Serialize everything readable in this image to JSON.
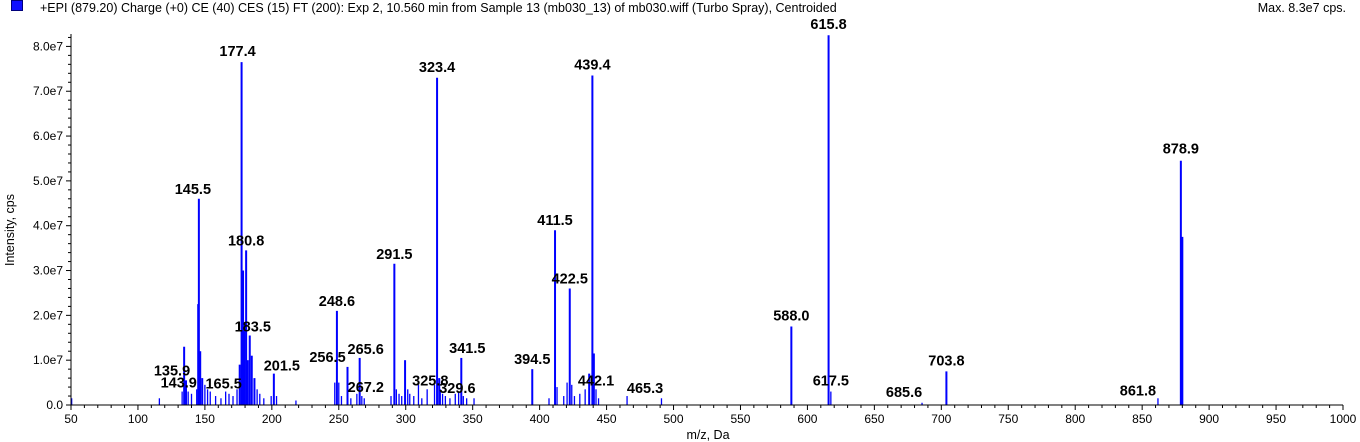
{
  "header": {
    "title": "+EPI (879.20) Charge (+0) CE (40) CES (15) FT (200): Exp 2, 10.560 min from Sample 13 (mb030_13) of mb030.wiff (Turbo Spray), Centroided",
    "max_label": "Max. 8.3e7 cps."
  },
  "colors": {
    "series": "#0000ff",
    "axis": "#000000",
    "background": "#ffffff"
  },
  "chart_data": {
    "type": "bar",
    "title": "",
    "xlabel": "m/z, Da",
    "ylabel": "Intensity, cps",
    "xlim": [
      50,
      1000
    ],
    "ylim": [
      0,
      85000000
    ],
    "grid": false,
    "x_ticks": [
      50,
      100,
      150,
      200,
      250,
      300,
      350,
      400,
      450,
      500,
      550,
      600,
      650,
      700,
      750,
      800,
      850,
      900,
      950,
      1000
    ],
    "y_ticks": [
      {
        "value": 0,
        "label": "0.0"
      },
      {
        "value": 10000000,
        "label": "1.0e7"
      },
      {
        "value": 20000000,
        "label": "2.0e7"
      },
      {
        "value": 30000000,
        "label": "3.0e7"
      },
      {
        "value": 40000000,
        "label": "4.0e7"
      },
      {
        "value": 50000000,
        "label": "5.0e7"
      },
      {
        "value": 60000000,
        "label": "6.0e7"
      },
      {
        "value": 70000000,
        "label": "7.0e7"
      },
      {
        "value": 80000000,
        "label": "8.0e7"
      }
    ],
    "peaks": [
      {
        "mz": 50.5,
        "intensity": 1500000
      },
      {
        "mz": 116.0,
        "intensity": 1500000
      },
      {
        "mz": 133.0,
        "intensity": 3000000
      },
      {
        "mz": 134.5,
        "intensity": 13000000
      },
      {
        "mz": 135.9,
        "intensity": 5500000,
        "label": "135.9"
      },
      {
        "mz": 137.5,
        "intensity": 3000000
      },
      {
        "mz": 140.0,
        "intensity": 2500000
      },
      {
        "mz": 143.9,
        "intensity": 3500000,
        "label": "143.9"
      },
      {
        "mz": 145.0,
        "intensity": 22500000
      },
      {
        "mz": 145.5,
        "intensity": 46000000,
        "label": "145.5"
      },
      {
        "mz": 146.5,
        "intensity": 12000000
      },
      {
        "mz": 148.0,
        "intensity": 6000000
      },
      {
        "mz": 150.0,
        "intensity": 4500000
      },
      {
        "mz": 152.0,
        "intensity": 3500000
      },
      {
        "mz": 154.0,
        "intensity": 3000000
      },
      {
        "mz": 158.0,
        "intensity": 2000000
      },
      {
        "mz": 162.0,
        "intensity": 1500000
      },
      {
        "mz": 165.5,
        "intensity": 3000000,
        "label": "165.5"
      },
      {
        "mz": 168.0,
        "intensity": 2500000
      },
      {
        "mz": 171.0,
        "intensity": 2000000
      },
      {
        "mz": 174.0,
        "intensity": 3500000
      },
      {
        "mz": 176.0,
        "intensity": 9000000
      },
      {
        "mz": 177.4,
        "intensity": 76500000,
        "label": "177.4"
      },
      {
        "mz": 178.5,
        "intensity": 30000000
      },
      {
        "mz": 179.5,
        "intensity": 18000000
      },
      {
        "mz": 180.8,
        "intensity": 34500000,
        "label": "180.8"
      },
      {
        "mz": 182.0,
        "intensity": 10000000
      },
      {
        "mz": 183.5,
        "intensity": 15500000,
        "label": "183.5"
      },
      {
        "mz": 185.0,
        "intensity": 11000000
      },
      {
        "mz": 187.0,
        "intensity": 6000000
      },
      {
        "mz": 189.0,
        "intensity": 3500000
      },
      {
        "mz": 191.0,
        "intensity": 2500000
      },
      {
        "mz": 194.0,
        "intensity": 1500000
      },
      {
        "mz": 199.5,
        "intensity": 2000000
      },
      {
        "mz": 201.5,
        "intensity": 7000000,
        "label": "201.5"
      },
      {
        "mz": 203.5,
        "intensity": 2000000
      },
      {
        "mz": 218.0,
        "intensity": 1000000
      },
      {
        "mz": 247.0,
        "intensity": 5000000
      },
      {
        "mz": 248.6,
        "intensity": 21000000,
        "label": "248.6"
      },
      {
        "mz": 250.0,
        "intensity": 5000000
      },
      {
        "mz": 252.0,
        "intensity": 2000000
      },
      {
        "mz": 256.5,
        "intensity": 8500000,
        "label": "256.5"
      },
      {
        "mz": 259.0,
        "intensity": 1500000
      },
      {
        "mz": 263.5,
        "intensity": 2500000
      },
      {
        "mz": 265.6,
        "intensity": 10500000,
        "label": "265.6"
      },
      {
        "mz": 267.2,
        "intensity": 2000000,
        "label": "267.2"
      },
      {
        "mz": 269.0,
        "intensity": 1500000
      },
      {
        "mz": 289.0,
        "intensity": 2000000
      },
      {
        "mz": 291.5,
        "intensity": 31500000,
        "label": "291.5"
      },
      {
        "mz": 293.0,
        "intensity": 3500000
      },
      {
        "mz": 295.0,
        "intensity": 2500000
      },
      {
        "mz": 297.0,
        "intensity": 2000000
      },
      {
        "mz": 299.5,
        "intensity": 10000000
      },
      {
        "mz": 301.5,
        "intensity": 3500000
      },
      {
        "mz": 303.0,
        "intensity": 2500000
      },
      {
        "mz": 306.0,
        "intensity": 2000000
      },
      {
        "mz": 309.5,
        "intensity": 4500000
      },
      {
        "mz": 312.0,
        "intensity": 1500000
      },
      {
        "mz": 316.0,
        "intensity": 3500000
      },
      {
        "mz": 321.5,
        "intensity": 4500000
      },
      {
        "mz": 323.4,
        "intensity": 73000000,
        "label": "323.4"
      },
      {
        "mz": 325.0,
        "intensity": 6000000
      },
      {
        "mz": 325.8,
        "intensity": 3500000,
        "label": "325.8"
      },
      {
        "mz": 327.5,
        "intensity": 2500000
      },
      {
        "mz": 329.6,
        "intensity": 2000000,
        "label": "329.6"
      },
      {
        "mz": 333.0,
        "intensity": 1500000
      },
      {
        "mz": 337.0,
        "intensity": 2500000
      },
      {
        "mz": 339.5,
        "intensity": 3000000
      },
      {
        "mz": 341.5,
        "intensity": 10500000,
        "label": "341.5"
      },
      {
        "mz": 343.0,
        "intensity": 2000000
      },
      {
        "mz": 345.5,
        "intensity": 1500000
      },
      {
        "mz": 351.0,
        "intensity": 1500000
      },
      {
        "mz": 394.5,
        "intensity": 8000000,
        "label": "394.5"
      },
      {
        "mz": 407.0,
        "intensity": 1500000
      },
      {
        "mz": 411.5,
        "intensity": 39000000,
        "label": "411.5"
      },
      {
        "mz": 413.0,
        "intensity": 4000000
      },
      {
        "mz": 418.0,
        "intensity": 2000000
      },
      {
        "mz": 420.5,
        "intensity": 5000000
      },
      {
        "mz": 422.5,
        "intensity": 26000000,
        "label": "422.5"
      },
      {
        "mz": 424.0,
        "intensity": 4500000
      },
      {
        "mz": 426.0,
        "intensity": 2000000
      },
      {
        "mz": 430.0,
        "intensity": 2500000
      },
      {
        "mz": 434.0,
        "intensity": 3500000
      },
      {
        "mz": 437.0,
        "intensity": 7000000
      },
      {
        "mz": 439.4,
        "intensity": 73500000,
        "label": "439.4"
      },
      {
        "mz": 440.5,
        "intensity": 11500000
      },
      {
        "mz": 442.1,
        "intensity": 3500000,
        "label": "442.1"
      },
      {
        "mz": 444.0,
        "intensity": 1500000
      },
      {
        "mz": 465.3,
        "intensity": 2000000,
        "label": "465.3"
      },
      {
        "mz": 491.0,
        "intensity": 1500000
      },
      {
        "mz": 588.0,
        "intensity": 17500000,
        "label": "588.0"
      },
      {
        "mz": 615.8,
        "intensity": 82500000,
        "label": "615.8"
      },
      {
        "mz": 617.5,
        "intensity": 3000000,
        "label": "617.5"
      },
      {
        "mz": 685.6,
        "intensity": 500000,
        "label": "685.6"
      },
      {
        "mz": 703.8,
        "intensity": 7500000,
        "label": "703.8"
      },
      {
        "mz": 861.8,
        "intensity": 1500000,
        "label": "861.8"
      },
      {
        "mz": 878.9,
        "intensity": 54500000,
        "label": "878.9"
      },
      {
        "mz": 880.0,
        "intensity": 37500000
      }
    ]
  }
}
